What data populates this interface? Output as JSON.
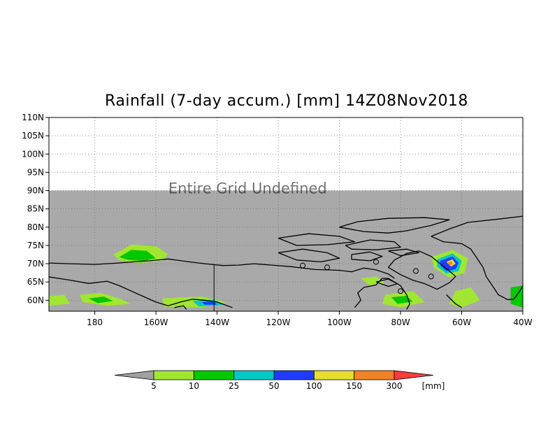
{
  "chart_data": {
    "type": "heatmap",
    "title": "Rainfall (7-day accum.) [mm] 14Z08Nov2018",
    "variable": "Rainfall (7-day accumulation)",
    "units": "mm",
    "valid_time": "14Z08Nov2018",
    "x_ticks": [
      "180",
      "160W",
      "140W",
      "120W",
      "100W",
      "80W",
      "60W",
      "40W"
    ],
    "y_ticks": [
      "60N",
      "65N",
      "70N",
      "75N",
      "80N",
      "85N",
      "90N",
      "95N",
      "100N",
      "105N",
      "110N"
    ],
    "lon_range": [
      -195,
      -40
    ],
    "lat_range": [
      57,
      110
    ],
    "no_data_above_lat": 90,
    "overlay_text": "Entire Grid Undefined",
    "grid": true,
    "colorbar": {
      "thresholds": [
        "5",
        "10",
        "25",
        "50",
        "100",
        "150",
        "300"
      ],
      "unit_label": "[mm]",
      "colors": [
        "#a0a0a0",
        "#a0e632",
        "#00c800",
        "#00c8c8",
        "#1e3cff",
        "#e6dc32",
        "#f08228",
        "#fa3c3c"
      ]
    },
    "colors": {
      "no_data": "#a9a9a9",
      "background": "#ffffff",
      "coastline": "#000000"
    }
  }
}
